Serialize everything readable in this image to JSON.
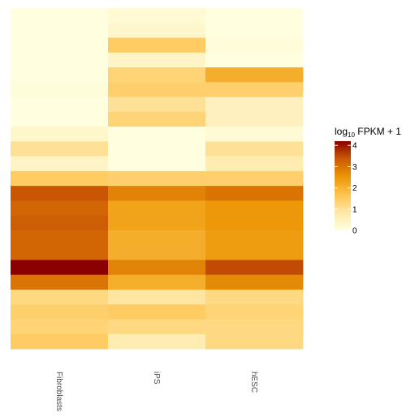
{
  "chart_data": {
    "type": "heatmap",
    "columns": [
      "Fibroblasts",
      "iPS",
      "hESC"
    ],
    "values": [
      [
        0.0,
        0.2,
        0.0
      ],
      [
        0.0,
        0.3,
        0.0
      ],
      [
        0.0,
        1.5,
        0.1
      ],
      [
        0.0,
        0.4,
        0.0
      ],
      [
        0.0,
        1.3,
        2.1
      ],
      [
        0.1,
        1.4,
        1.4
      ],
      [
        0.0,
        1.0,
        0.5
      ],
      [
        0.0,
        1.3,
        0.5
      ],
      [
        0.3,
        0.0,
        0.2
      ],
      [
        1.0,
        0.0,
        1.0
      ],
      [
        0.4,
        0.0,
        0.7
      ],
      [
        1.5,
        1.4,
        1.4
      ],
      [
        3.4,
        2.8,
        3.0
      ],
      [
        3.2,
        2.3,
        2.5
      ],
      [
        3.3,
        2.3,
        2.5
      ],
      [
        3.2,
        2.1,
        2.4
      ],
      [
        3.2,
        2.1,
        2.4
      ],
      [
        4.2,
        2.8,
        3.5
      ],
      [
        3.0,
        2.1,
        2.7
      ],
      [
        1.2,
        0.9,
        1.2
      ],
      [
        1.4,
        1.5,
        1.3
      ],
      [
        1.3,
        1.2,
        1.2
      ],
      [
        1.5,
        0.7,
        1.2
      ]
    ],
    "legend": {
      "title_base": "log",
      "title_sub": "10",
      "title_rest": " FPKM + 1",
      "ticks": [
        0,
        1,
        2,
        3,
        4
      ],
      "range": [
        0,
        4.2
      ],
      "placement": "right"
    },
    "colors": [
      "#ffffe0",
      "#fee8a8",
      "#fec44f",
      "#ec9706",
      "#cc5a05",
      "#8b0000"
    ]
  }
}
